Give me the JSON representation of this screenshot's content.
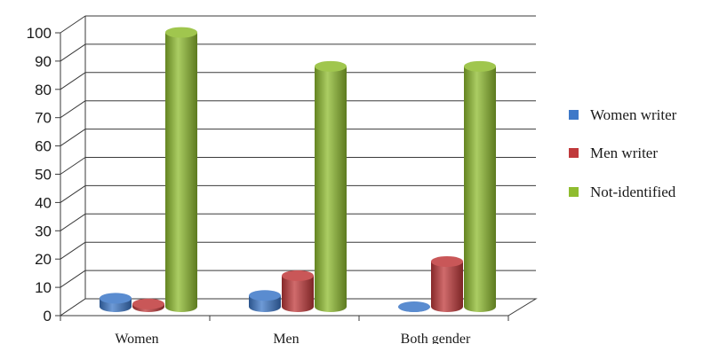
{
  "chart_data": {
    "type": "bar",
    "style": "3d-cylinder",
    "categories": [
      "Women",
      "Men",
      "Both gender"
    ],
    "series": [
      {
        "name": "Women writer",
        "color": "#3d78c8",
        "values": [
          3,
          4,
          0
        ]
      },
      {
        "name": "Men writer",
        "color": "#c0393b",
        "values": [
          1,
          11,
          16
        ]
      },
      {
        "name": "Not-identified",
        "color": "#8fbc2f",
        "values": [
          97,
          85,
          85
        ]
      }
    ],
    "ylim": [
      0,
      100
    ],
    "yticks": [
      0,
      10,
      20,
      30,
      40,
      50,
      60,
      70,
      80,
      90,
      100
    ],
    "title": "",
    "xlabel": "",
    "ylabel": "",
    "grid": true,
    "legend_position": "right"
  }
}
